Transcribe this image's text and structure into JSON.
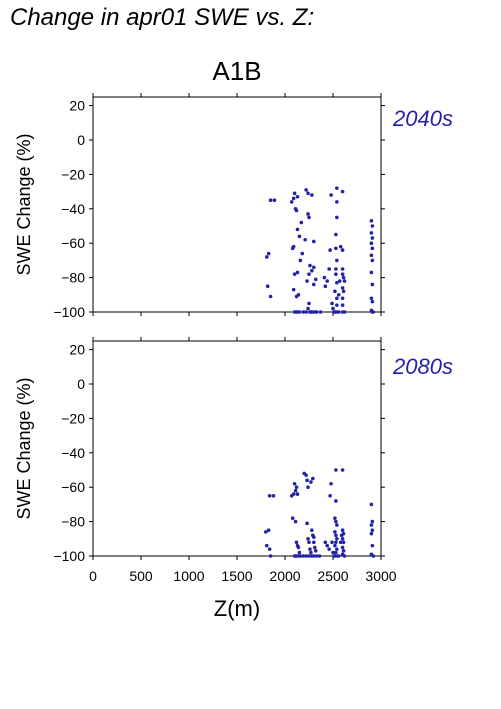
{
  "header": {
    "title": "Change in apr01 SWE vs. Z:",
    "scenario": "A1B"
  },
  "chart_data": [
    {
      "type": "scatter",
      "period": "2040s",
      "ylabel": "SWE Change (%)",
      "xlabel": "",
      "xlim": [
        0,
        3000
      ],
      "ylim": [
        -100,
        25
      ],
      "x_ticks": [
        0,
        500,
        1000,
        1500,
        2000,
        2500,
        3000
      ],
      "y_ticks": [
        20,
        0,
        -20,
        -40,
        -60,
        -80,
        -100
      ],
      "y_tick_labels": [
        "20",
        "0",
        "−20",
        "−40",
        "−60",
        "−80",
        "−100"
      ],
      "point_color": "#2323a8",
      "points": [
        [
          1810,
          -68
        ],
        [
          1830,
          -66
        ],
        [
          1820,
          -85
        ],
        [
          1850,
          -91
        ],
        [
          1850,
          -35
        ],
        [
          1890,
          -35
        ],
        [
          2070,
          -36
        ],
        [
          2090,
          -34
        ],
        [
          2100,
          -31
        ],
        [
          2110,
          -40
        ],
        [
          2120,
          -41
        ],
        [
          2130,
          -33
        ],
        [
          2080,
          -63
        ],
        [
          2090,
          -62
        ],
        [
          2130,
          -52
        ],
        [
          2150,
          -56
        ],
        [
          2170,
          -48
        ],
        [
          2220,
          -29
        ],
        [
          2240,
          -31
        ],
        [
          2240,
          -43
        ],
        [
          2250,
          -45
        ],
        [
          2280,
          -32
        ],
        [
          2300,
          -59
        ],
        [
          2210,
          -58
        ],
        [
          2100,
          -78
        ],
        [
          2130,
          -77
        ],
        [
          2160,
          -70
        ],
        [
          2180,
          -66
        ],
        [
          2230,
          -82
        ],
        [
          2250,
          -78
        ],
        [
          2260,
          -73
        ],
        [
          2280,
          -76
        ],
        [
          2300,
          -74
        ],
        [
          2300,
          -84
        ],
        [
          2320,
          -81
        ],
        [
          2090,
          -87
        ],
        [
          2120,
          -91
        ],
        [
          2140,
          -90
        ],
        [
          2100,
          -100
        ],
        [
          2120,
          -100
        ],
        [
          2130,
          -100
        ],
        [
          2150,
          -100
        ],
        [
          2190,
          -100
        ],
        [
          2220,
          -100
        ],
        [
          2240,
          -98
        ],
        [
          2250,
          -95
        ],
        [
          2260,
          -100
        ],
        [
          2270,
          -100
        ],
        [
          2280,
          -100
        ],
        [
          2300,
          -100
        ],
        [
          2320,
          -100
        ],
        [
          2330,
          -100
        ],
        [
          2370,
          -100
        ],
        [
          2410,
          -80
        ],
        [
          2420,
          -85
        ],
        [
          2440,
          -82
        ],
        [
          2460,
          -75
        ],
        [
          2470,
          -64
        ],
        [
          2480,
          -32
        ],
        [
          2490,
          -95
        ],
        [
          2500,
          -98
        ],
        [
          2510,
          -100
        ],
        [
          2520,
          -100
        ],
        [
          2530,
          -100
        ],
        [
          2540,
          -28
        ],
        [
          2540,
          -36
        ],
        [
          2540,
          -45
        ],
        [
          2530,
          -55
        ],
        [
          2530,
          -63
        ],
        [
          2540,
          -70
        ],
        [
          2530,
          -75
        ],
        [
          2530,
          -78
        ],
        [
          2540,
          -83
        ],
        [
          2520,
          -88
        ],
        [
          2540,
          -92
        ],
        [
          2540,
          -96
        ],
        [
          2550,
          -100
        ],
        [
          2560,
          -100
        ],
        [
          2560,
          -90
        ],
        [
          2570,
          -82
        ],
        [
          2580,
          -62
        ],
        [
          2600,
          -30
        ],
        [
          2600,
          -64
        ],
        [
          2600,
          -75
        ],
        [
          2600,
          -78
        ],
        [
          2610,
          -80
        ],
        [
          2600,
          -86
        ],
        [
          2610,
          -88
        ],
        [
          2600,
          -92
        ],
        [
          2600,
          -96
        ],
        [
          2600,
          -100
        ],
        [
          2620,
          -100
        ],
        [
          2620,
          -82
        ],
        [
          2900,
          -47
        ],
        [
          2910,
          -50
        ],
        [
          2900,
          -54
        ],
        [
          2910,
          -57
        ],
        [
          2900,
          -60
        ],
        [
          2910,
          -63
        ],
        [
          2900,
          -67
        ],
        [
          2910,
          -70
        ],
        [
          2900,
          -77
        ],
        [
          2910,
          -84
        ],
        [
          2900,
          -92
        ],
        [
          2910,
          -94
        ],
        [
          2900,
          -99
        ],
        [
          2910,
          -100
        ],
        [
          2920,
          -100
        ]
      ]
    },
    {
      "type": "scatter",
      "period": "2080s",
      "ylabel": "SWE Change (%)",
      "xlabel": "Z(m)",
      "xlim": [
        0,
        3000
      ],
      "ylim": [
        -100,
        25
      ],
      "x_ticks": [
        0,
        500,
        1000,
        1500,
        2000,
        2500,
        3000
      ],
      "x_tick_labels": [
        "0",
        "500",
        "1000",
        "1500",
        "2000",
        "2500",
        "3000"
      ],
      "y_ticks": [
        20,
        0,
        -20,
        -40,
        -60,
        -80,
        -100
      ],
      "y_tick_labels": [
        "20",
        "0",
        "−20",
        "−40",
        "−60",
        "−80",
        "−100"
      ],
      "point_color": "#2323a8",
      "points": [
        [
          1800,
          -86
        ],
        [
          1830,
          -85
        ],
        [
          1810,
          -94
        ],
        [
          1840,
          -96
        ],
        [
          1840,
          -65
        ],
        [
          1880,
          -65
        ],
        [
          1850,
          -100
        ],
        [
          2070,
          -65
        ],
        [
          2090,
          -64
        ],
        [
          2100,
          -58
        ],
        [
          2110,
          -62
        ],
        [
          2120,
          -60
        ],
        [
          2130,
          -64
        ],
        [
          2080,
          -78
        ],
        [
          2110,
          -80
        ],
        [
          2120,
          -92
        ],
        [
          2130,
          -94
        ],
        [
          2140,
          -95
        ],
        [
          2150,
          -98
        ],
        [
          2100,
          -100
        ],
        [
          2110,
          -100
        ],
        [
          2120,
          -100
        ],
        [
          2140,
          -100
        ],
        [
          2160,
          -100
        ],
        [
          2200,
          -52
        ],
        [
          2220,
          -53
        ],
        [
          2230,
          -56
        ],
        [
          2240,
          -60
        ],
        [
          2270,
          -57
        ],
        [
          2290,
          -55
        ],
        [
          2230,
          -81
        ],
        [
          2240,
          -90
        ],
        [
          2250,
          -92
        ],
        [
          2260,
          -96
        ],
        [
          2270,
          -98
        ],
        [
          2280,
          -85
        ],
        [
          2290,
          -88
        ],
        [
          2300,
          -89
        ],
        [
          2300,
          -92
        ],
        [
          2310,
          -95
        ],
        [
          2320,
          -97
        ],
        [
          2190,
          -100
        ],
        [
          2220,
          -100
        ],
        [
          2250,
          -100
        ],
        [
          2280,
          -100
        ],
        [
          2300,
          -100
        ],
        [
          2330,
          -100
        ],
        [
          2360,
          -100
        ],
        [
          2420,
          -92
        ],
        [
          2440,
          -94
        ],
        [
          2460,
          -96
        ],
        [
          2470,
          -65
        ],
        [
          2480,
          -58
        ],
        [
          2490,
          -92
        ],
        [
          2500,
          -98
        ],
        [
          2510,
          -100
        ],
        [
          2520,
          -100
        ],
        [
          2530,
          -50
        ],
        [
          2530,
          -68
        ],
        [
          2520,
          -78
        ],
        [
          2530,
          -80
        ],
        [
          2540,
          -82
        ],
        [
          2520,
          -86
        ],
        [
          2530,
          -88
        ],
        [
          2540,
          -90
        ],
        [
          2530,
          -92
        ],
        [
          2520,
          -94
        ],
        [
          2540,
          -96
        ],
        [
          2530,
          -98
        ],
        [
          2550,
          -100
        ],
        [
          2560,
          -100
        ],
        [
          2580,
          -92
        ],
        [
          2590,
          -88
        ],
        [
          2600,
          -50
        ],
        [
          2600,
          -85
        ],
        [
          2610,
          -87
        ],
        [
          2600,
          -90
        ],
        [
          2610,
          -92
        ],
        [
          2600,
          -95
        ],
        [
          2610,
          -97
        ],
        [
          2600,
          -99
        ],
        [
          2620,
          -100
        ],
        [
          2900,
          -70
        ],
        [
          2910,
          -80
        ],
        [
          2900,
          -82
        ],
        [
          2910,
          -85
        ],
        [
          2900,
          -87
        ],
        [
          2910,
          -94
        ],
        [
          2900,
          -99
        ],
        [
          2920,
          -100
        ]
      ]
    }
  ]
}
